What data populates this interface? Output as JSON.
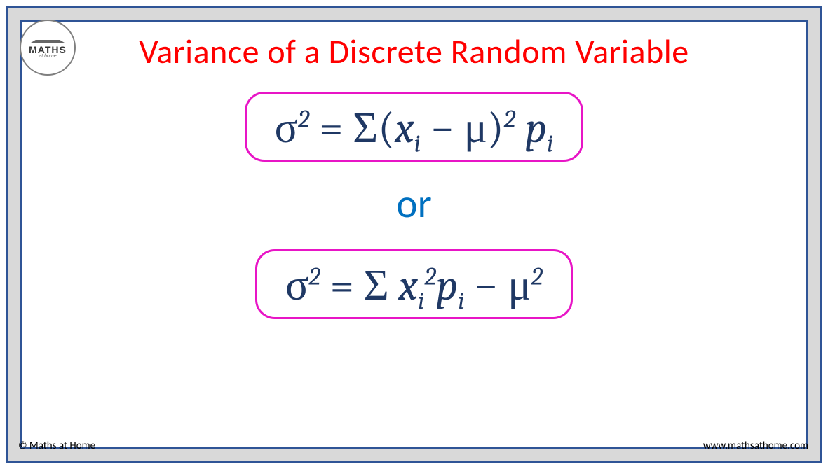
{
  "logo": {
    "text": "MATHS",
    "subtext": "at home"
  },
  "title": "Variance of a Discrete Random Variable",
  "formula1": {
    "plain": "σ² = Σ(xᵢ − μ)² pᵢ",
    "sigma": "σ",
    "sup2": "2",
    "eq": " = ",
    "bigSigma": "Σ",
    "lparen": "(",
    "x": "x",
    "sub_i": "i",
    "minus": " − ",
    "mu": "μ",
    "rparen": ")",
    "p": "p"
  },
  "connector": "or",
  "formula2": {
    "plain": "σ² = Σ xᵢ²pᵢ − μ²",
    "sigma": "σ",
    "sup2": "2",
    "eq": " = ",
    "bigSigma": "Σ",
    "x": "x",
    "sub_i": "i",
    "p": "p",
    "minus": " − ",
    "mu": "μ"
  },
  "footer": {
    "copyright": "© Maths at Home",
    "url": "www.mathsathome.com"
  },
  "colors": {
    "border": "#2f5496",
    "title": "#ff0000",
    "formula_text": "#1f3864",
    "formula_border": "#e815c6",
    "connector": "#0070c0",
    "inner_bg": "#ffffff",
    "gap_bg": "#d9d9d9"
  }
}
